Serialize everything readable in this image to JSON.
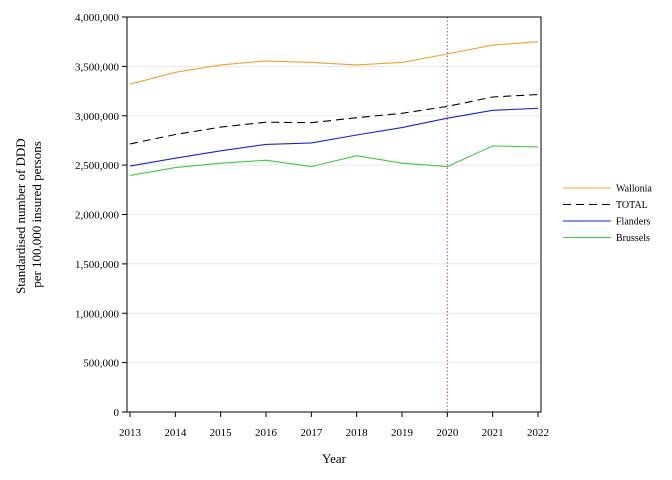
{
  "chart_data": {
    "type": "line",
    "title": "",
    "xlabel": "Year",
    "ylabel_lines": [
      "Standardised number of DDD",
      "per 100,000 insured persons"
    ],
    "x": [
      2013,
      2014,
      2015,
      2016,
      2017,
      2018,
      2019,
      2020,
      2021,
      2022
    ],
    "x_tick_labels": [
      "2013",
      "2014",
      "2015",
      "2016",
      "2017",
      "2018",
      "2019",
      "2020",
      "2021",
      "2022"
    ],
    "xlim": [
      2013,
      2022
    ],
    "ylim": [
      0,
      4000000
    ],
    "y_ticks": [
      0,
      500000,
      1000000,
      1500000,
      2000000,
      2500000,
      3000000,
      3500000,
      4000000
    ],
    "y_tick_labels": [
      "0",
      "500,000",
      "1,000,000",
      "1,500,000",
      "2,000,000",
      "2,500,000",
      "3,000,000",
      "3,500,000",
      "4,000,000"
    ],
    "grid": "horizontal",
    "reference_line": {
      "x": 2020,
      "color": "#c0505a",
      "style": "dotted"
    },
    "legend_position": "right",
    "series": [
      {
        "name": "Wallonia",
        "color": "#f0a030",
        "dash": "solid",
        "values": [
          3320000,
          3440000,
          3515000,
          3555000,
          3540000,
          3515000,
          3540000,
          3625000,
          3715000,
          3750000
        ]
      },
      {
        "name": "TOTAL",
        "color": "#000000",
        "dash": "dashed",
        "values": [
          2715000,
          2810000,
          2885000,
          2935000,
          2930000,
          2980000,
          3025000,
          3095000,
          3190000,
          3215000
        ]
      },
      {
        "name": "Flanders",
        "color": "#2020d0",
        "dash": "solid",
        "values": [
          2490000,
          2570000,
          2645000,
          2710000,
          2725000,
          2805000,
          2880000,
          2975000,
          3055000,
          3075000
        ]
      },
      {
        "name": "Brussels",
        "color": "#40c840",
        "dash": "solid",
        "values": [
          2395000,
          2475000,
          2520000,
          2550000,
          2485000,
          2595000,
          2520000,
          2485000,
          2695000,
          2685000
        ]
      }
    ]
  }
}
